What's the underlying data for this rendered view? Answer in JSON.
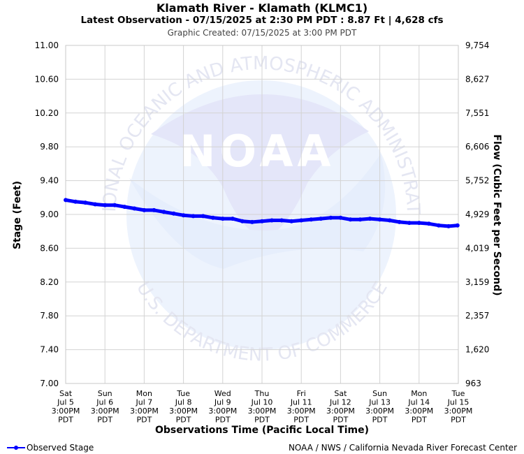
{
  "header": {
    "title": "Klamath River - Klamath (KLMC1)",
    "subtitle": "Latest Observation - 07/15/2025 at 2:30 PM PDT : 8.87 Ft | 4,628 cfs",
    "created": "Graphic Created: 07/15/2025 at 3:00 PM PDT"
  },
  "watermark": {
    "logo_text": "NOAA",
    "ring_top": "NATIONAL OCEANIC AND ATMOSPHERIC ADMINISTRATION",
    "ring_bottom": "U.S. DEPARTMENT OF COMMERCE"
  },
  "footer": {
    "legend_label": "Observed Stage",
    "credit": "NOAA / NWS / California Nevada River Forecast Center"
  },
  "colors": {
    "series": "#0000ff",
    "grid": "#d3d3d3",
    "watermark": "#e8ecfb"
  },
  "chart_data": {
    "type": "line",
    "title": "Klamath River - Klamath (KLMC1)",
    "xlabel": "Observations Time (Pacific Local Time)",
    "ylabel": "Stage (Feet)",
    "y2label": "Flow (Cubic Feet per Second)",
    "ylim": [
      7.0,
      11.0
    ],
    "y_ticks": [
      "11.00",
      "10.60",
      "10.20",
      "9.80",
      "9.40",
      "9.00",
      "8.60",
      "8.20",
      "7.80",
      "7.40",
      "7.00"
    ],
    "y_tick_values": [
      11.0,
      10.6,
      10.2,
      9.8,
      9.4,
      9.0,
      8.6,
      8.2,
      7.8,
      7.4,
      7.0
    ],
    "y2_ticks": [
      "9,754",
      "8,627",
      "7,551",
      "6,606",
      "5,752",
      "4,929",
      "4,019",
      "3,159",
      "2,357",
      "1,620",
      "963"
    ],
    "x_ticks": [
      [
        "Sat",
        "Jul 5",
        "3:00PM",
        "PDT"
      ],
      [
        "Sun",
        "Jul 6",
        "3:00PM",
        "PDT"
      ],
      [
        "Mon",
        "Jul 7",
        "3:00PM",
        "PDT"
      ],
      [
        "Tue",
        "Jul 8",
        "3:00PM",
        "PDT"
      ],
      [
        "Wed",
        "Jul 9",
        "3:00PM",
        "PDT"
      ],
      [
        "Thu",
        "Jul 10",
        "3:00PM",
        "PDT"
      ],
      [
        "Fri",
        "Jul 11",
        "3:00PM",
        "PDT"
      ],
      [
        "Sat",
        "Jul 12",
        "3:00PM",
        "PDT"
      ],
      [
        "Sun",
        "Jul 13",
        "3:00PM",
        "PDT"
      ],
      [
        "Mon",
        "Jul 14",
        "3:00PM",
        "PDT"
      ],
      [
        "Tue",
        "Jul 15",
        "3:00PM",
        "PDT"
      ]
    ],
    "grid": true,
    "legend": "bottom-left",
    "series": [
      {
        "name": "Observed Stage",
        "x": [
          "07/05 3:00PM",
          "07/05 9:00PM",
          "07/06 3:00AM",
          "07/06 9:00AM",
          "07/06 3:00PM",
          "07/06 9:00PM",
          "07/07 3:00AM",
          "07/07 9:00AM",
          "07/07 3:00PM",
          "07/07 9:00PM",
          "07/08 3:00AM",
          "07/08 9:00AM",
          "07/08 3:00PM",
          "07/08 9:00PM",
          "07/09 3:00AM",
          "07/09 9:00AM",
          "07/09 3:00PM",
          "07/09 9:00PM",
          "07/10 3:00AM",
          "07/10 9:00AM",
          "07/10 3:00PM",
          "07/10 9:00PM",
          "07/11 3:00AM",
          "07/11 9:00AM",
          "07/11 3:00PM",
          "07/11 9:00PM",
          "07/12 3:00AM",
          "07/12 9:00AM",
          "07/12 3:00PM",
          "07/12 9:00PM",
          "07/13 3:00AM",
          "07/13 9:00AM",
          "07/13 3:00PM",
          "07/13 9:00PM",
          "07/14 3:00AM",
          "07/14 9:00AM",
          "07/14 3:00PM",
          "07/14 9:00PM",
          "07/15 3:00AM",
          "07/15 9:00AM",
          "07/15 2:30PM"
        ],
        "values": [
          9.17,
          9.15,
          9.14,
          9.12,
          9.11,
          9.11,
          9.09,
          9.07,
          9.05,
          9.05,
          9.03,
          9.01,
          8.99,
          8.98,
          8.98,
          8.96,
          8.95,
          8.95,
          8.92,
          8.91,
          8.92,
          8.93,
          8.93,
          8.92,
          8.93,
          8.94,
          8.95,
          8.96,
          8.96,
          8.94,
          8.94,
          8.95,
          8.94,
          8.93,
          8.91,
          8.9,
          8.9,
          8.89,
          8.87,
          8.86,
          8.87
        ]
      }
    ]
  }
}
